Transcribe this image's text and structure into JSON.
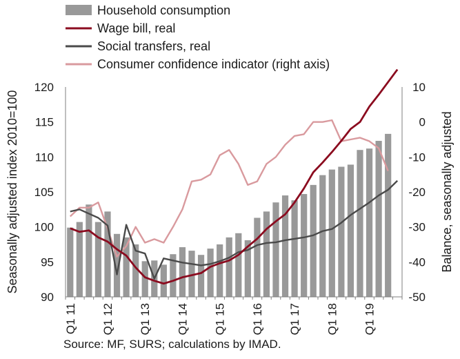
{
  "chart_data": {
    "type": "bar+line",
    "title": "",
    "source": "Source: MF, SURS; calculations by IMAD.",
    "ylabel": "Seasonally adjusted index 2010=100",
    "ylabel_right": "Balance, seasonally adjusted",
    "ylim": [
      90,
      120
    ],
    "ylim_right": [
      -50,
      10
    ],
    "yticks": [
      "90",
      "95",
      "100",
      "105",
      "110",
      "115",
      "120"
    ],
    "yticks_right": [
      "-50",
      "-40",
      "-30",
      "-20",
      "-10",
      "0",
      "10"
    ],
    "grid": false,
    "legend_position": "top-left",
    "x_tick_labels": [
      "Q1 11",
      "Q1 12",
      "Q1 13",
      "Q1 14",
      "Q1 15",
      "Q1 16",
      "Q1 17",
      "Q1 18",
      "Q1 19"
    ],
    "periods_per_year": 4,
    "series": [
      {
        "name": "Household consumption",
        "type": "bar",
        "axis": "left",
        "color": "#999999",
        "values": [
          99.9,
          100.7,
          103.2,
          100.7,
          102.2,
          99.0,
          98.5,
          97.5,
          95.1,
          95.2,
          94.6,
          96.1,
          97.1,
          96.6,
          96.0,
          96.9,
          97.5,
          98.5,
          99.1,
          98.1,
          101.3,
          102.2,
          103.5,
          104.5,
          103.8,
          104.7,
          106.0,
          107.4,
          108.2,
          108.6,
          108.9,
          111.0,
          111.2,
          112.3,
          113.3
        ]
      },
      {
        "name": "Wage bill, real",
        "type": "line",
        "axis": "left",
        "color": "#8b0b1f",
        "values": [
          99.8,
          99.3,
          99.5,
          98.5,
          97.9,
          96.8,
          95.9,
          94.2,
          92.8,
          92.3,
          91.9,
          92.3,
          92.8,
          93.1,
          93.4,
          94.3,
          94.8,
          95.2,
          96.0,
          97.2,
          98.3,
          99.7,
          100.8,
          101.8,
          103.5,
          105.5,
          107.8,
          109.2,
          110.7,
          112.3,
          114.0,
          115.0,
          117.2,
          118.9,
          120.7,
          122.5
        ]
      },
      {
        "name": "Social transfers, real",
        "type": "line",
        "axis": "left",
        "color": "#4a4a4a",
        "values": [
          102.2,
          102.5,
          101.9,
          101.3,
          100.2,
          93.2,
          100.3,
          96.6,
          96.2,
          92.6,
          95.5,
          95.2,
          94.9,
          94.7,
          94.5,
          94.7,
          95.1,
          95.6,
          96.4,
          96.7,
          97.4,
          97.7,
          97.8,
          98.1,
          98.3,
          98.5,
          98.8,
          99.4,
          99.7,
          100.6,
          101.7,
          102.6,
          103.5,
          104.5,
          105.3,
          106.6
        ]
      },
      {
        "name": "Consumer confidence indicator (right axis)",
        "type": "line",
        "axis": "right",
        "color": "#d99a9e",
        "values": [
          -27,
          -24.5,
          -24.5,
          -23,
          -30.5,
          -38.5,
          -35.5,
          -30,
          -34.5,
          -33.5,
          -34.5,
          -30,
          -25,
          -17,
          -16.5,
          -15,
          -9.5,
          -8,
          -12,
          -18,
          -17,
          -12,
          -10,
          -6.5,
          -4,
          -3.5,
          0,
          0,
          0.5,
          -5.5,
          -5,
          -4.5,
          -5.5,
          -7.5,
          -14
        ]
      }
    ]
  }
}
